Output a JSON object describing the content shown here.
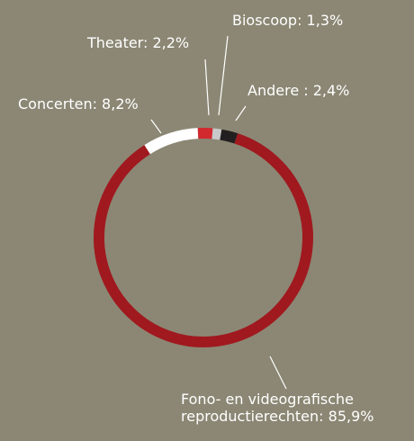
{
  "chart_data": {
    "type": "donut",
    "values": [
      2.2,
      1.3,
      2.4,
      85.9,
      8.2
    ],
    "value_labels": [
      "Theater: 2,2%",
      "Bioscoop: 1,3%",
      "Andere : 2,4%",
      [
        "Fono- en videografische",
        "reproductierechten: 85,9%"
      ],
      "Concerten: 8,2%"
    ],
    "colors": [
      "#d2292f",
      "#c9c9c9",
      "#231f20",
      "#a0191f",
      "#ffffff"
    ]
  }
}
